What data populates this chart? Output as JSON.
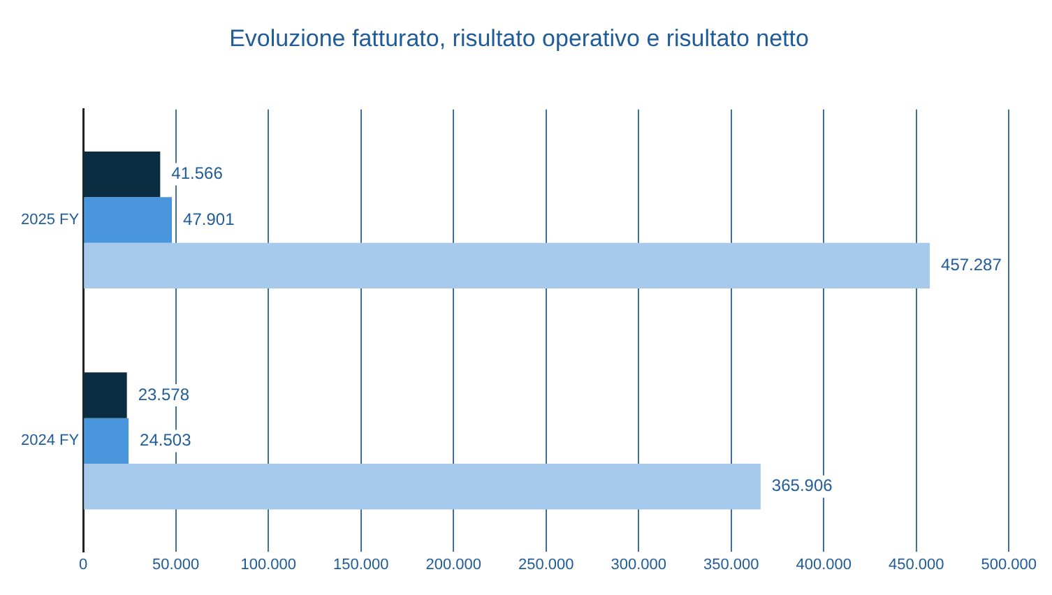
{
  "chart_data": {
    "type": "bar",
    "orientation": "horizontal",
    "title": "Evoluzione fatturato, risultato operativo e risultato netto",
    "categories": [
      "2025 FY",
      "2024 FY"
    ],
    "series": [
      {
        "color": "#0b2d42",
        "values": [
          41566,
          23578
        ],
        "value_labels": [
          "41.566",
          "23.578"
        ]
      },
      {
        "color": "#4a96dc",
        "values": [
          47901,
          24503
        ],
        "value_labels": [
          "47.901",
          "24.503"
        ]
      },
      {
        "color": "#a6c9ec",
        "values": [
          457287,
          365906
        ],
        "value_labels": [
          "457.287",
          "365.906"
        ]
      }
    ],
    "xlim": [
      0,
      500000
    ],
    "xticks": [
      0,
      {
        "value": 50000,
        "label": "50.000"
      },
      {
        "value": 100000,
        "label": "100.000"
      },
      {
        "value": 150000,
        "label": "150.000"
      },
      {
        "value": 200000,
        "label": "200.000"
      },
      {
        "value": 250000,
        "label": "250.000"
      },
      {
        "value": 300000,
        "label": "300.000"
      },
      {
        "value": 350000,
        "label": "350.000"
      },
      {
        "value": 400000,
        "label": "400.000"
      },
      {
        "value": 450000,
        "label": "450.000"
      },
      {
        "value": 500000,
        "label": "500.000"
      }
    ],
    "grid": "x",
    "legend": false
  }
}
